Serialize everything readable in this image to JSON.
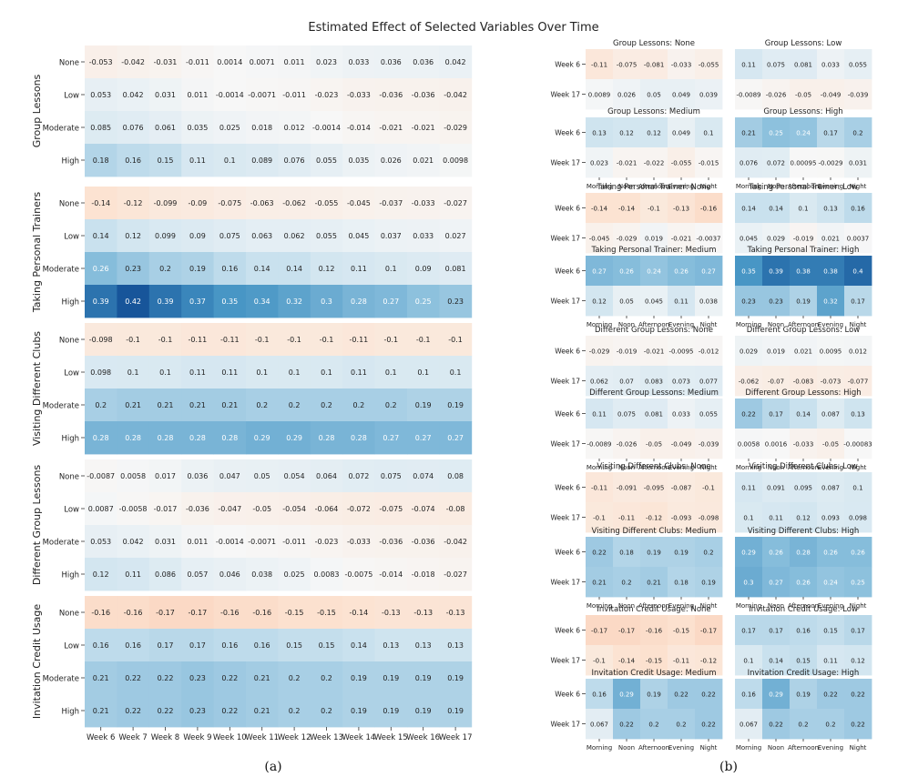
{
  "chart_data": [
    {
      "type": "heatmap",
      "id": "a",
      "title": "Estimated Effect of Selected Variables Over Time",
      "caption": "(a)",
      "columns": [
        "Week 6",
        "Week 7",
        "Week 8",
        "Week 9",
        "Week 10",
        "Week 11",
        "Week 12",
        "Week 13",
        "Week 14",
        "Week 15",
        "Week 16",
        "Week 17"
      ],
      "levels": [
        "None",
        "Low",
        "Moderate",
        "High"
      ],
      "color_range": [
        -0.42,
        0.42
      ],
      "groups": [
        {
          "name": "Group Lessons",
          "rows": [
            [
              "-0.053",
              "-0.042",
              "-0.031",
              "-0.011",
              "0.0014",
              "0.0071",
              "0.011",
              "0.023",
              "0.033",
              "0.036",
              "0.036",
              "0.042"
            ],
            [
              "0.053",
              "0.042",
              "0.031",
              "0.011",
              "-0.0014",
              "-0.0071",
              "-0.011",
              "-0.023",
              "-0.033",
              "-0.036",
              "-0.036",
              "-0.042"
            ],
            [
              "0.085",
              "0.076",
              "0.061",
              "0.035",
              "0.025",
              "0.018",
              "0.012",
              "-0.0014",
              "-0.014",
              "-0.021",
              "-0.021",
              "-0.029"
            ],
            [
              "0.18",
              "0.16",
              "0.15",
              "0.11",
              "0.1",
              "0.089",
              "0.076",
              "0.055",
              "0.035",
              "0.026",
              "0.021",
              "0.0098"
            ]
          ]
        },
        {
          "name": "Taking Personal Trainers",
          "rows": [
            [
              "-0.14",
              "-0.12",
              "-0.099",
              "-0.09",
              "-0.075",
              "-0.063",
              "-0.062",
              "-0.055",
              "-0.045",
              "-0.037",
              "-0.033",
              "-0.027"
            ],
            [
              "0.14",
              "0.12",
              "0.099",
              "0.09",
              "0.075",
              "0.063",
              "0.062",
              "0.055",
              "0.045",
              "0.037",
              "0.033",
              "0.027"
            ],
            [
              "0.26",
              "0.23",
              "0.2",
              "0.19",
              "0.16",
              "0.14",
              "0.14",
              "0.12",
              "0.11",
              "0.1",
              "0.09",
              "0.081"
            ],
            [
              "0.39",
              "0.42",
              "0.39",
              "0.37",
              "0.35",
              "0.34",
              "0.32",
              "0.3",
              "0.28",
              "0.27",
              "0.25",
              "0.23"
            ]
          ]
        },
        {
          "name": "Visiting Different Clubs",
          "rows": [
            [
              "-0.098",
              "-0.1",
              "-0.1",
              "-0.11",
              "-0.11",
              "-0.1",
              "-0.1",
              "-0.1",
              "-0.11",
              "-0.1",
              "-0.1",
              "-0.1"
            ],
            [
              "0.098",
              "0.1",
              "0.1",
              "0.11",
              "0.11",
              "0.1",
              "0.1",
              "0.1",
              "0.11",
              "0.1",
              "0.1",
              "0.1"
            ],
            [
              "0.2",
              "0.21",
              "0.21",
              "0.21",
              "0.21",
              "0.2",
              "0.2",
              "0.2",
              "0.2",
              "0.2",
              "0.19",
              "0.19"
            ],
            [
              "0.28",
              "0.28",
              "0.28",
              "0.28",
              "0.28",
              "0.29",
              "0.29",
              "0.28",
              "0.28",
              "0.27",
              "0.27",
              "0.27"
            ]
          ]
        },
        {
          "name": "Different Group Lessons",
          "rows": [
            [
              "-0.0087",
              "0.0058",
              "0.017",
              "0.036",
              "0.047",
              "0.05",
              "0.054",
              "0.064",
              "0.072",
              "0.075",
              "0.074",
              "0.08"
            ],
            [
              "0.0087",
              "-0.0058",
              "-0.017",
              "-0.036",
              "-0.047",
              "-0.05",
              "-0.054",
              "-0.064",
              "-0.072",
              "-0.075",
              "-0.074",
              "-0.08"
            ],
            [
              "0.053",
              "0.042",
              "0.031",
              "0.011",
              "-0.0014",
              "-0.0071",
              "-0.011",
              "-0.023",
              "-0.033",
              "-0.036",
              "-0.036",
              "-0.042"
            ],
            [
              "0.12",
              "0.11",
              "0.086",
              "0.057",
              "0.046",
              "0.038",
              "0.025",
              "0.0083",
              "-0.0075",
              "-0.014",
              "-0.018",
              "-0.027"
            ]
          ]
        },
        {
          "name": "Invitation Credit Usage",
          "rows": [
            [
              "-0.16",
              "-0.16",
              "-0.17",
              "-0.17",
              "-0.16",
              "-0.16",
              "-0.15",
              "-0.15",
              "-0.14",
              "-0.13",
              "-0.13",
              "-0.13"
            ],
            [
              "0.16",
              "0.16",
              "0.17",
              "0.17",
              "0.16",
              "0.16",
              "0.15",
              "0.15",
              "0.14",
              "0.13",
              "0.13",
              "0.13"
            ],
            [
              "0.21",
              "0.22",
              "0.22",
              "0.23",
              "0.22",
              "0.21",
              "0.2",
              "0.2",
              "0.19",
              "0.19",
              "0.19",
              "0.19"
            ],
            [
              "0.21",
              "0.22",
              "0.22",
              "0.23",
              "0.22",
              "0.21",
              "0.2",
              "0.2",
              "0.19",
              "0.19",
              "0.19",
              "0.19"
            ]
          ]
        }
      ]
    },
    {
      "type": "heatmap",
      "id": "b",
      "caption": "(b)",
      "columns": [
        "Morning",
        "Noon",
        "Afternoon",
        "Evening",
        "Night"
      ],
      "rows": [
        "Week 6",
        "Week 17"
      ],
      "color_range": [
        -0.42,
        0.42
      ],
      "panels": [
        {
          "title": "Group Lessons: None",
          "values": [
            [
              "-0.11",
              "-0.075",
              "-0.081",
              "-0.033",
              "-0.055"
            ],
            [
              "0.0089",
              "0.026",
              "0.05",
              "0.049",
              "0.039"
            ]
          ]
        },
        {
          "title": "Group Lessons: Low",
          "values": [
            [
              "0.11",
              "0.075",
              "0.081",
              "0.033",
              "0.055"
            ],
            [
              "-0.0089",
              "-0.026",
              "-0.05",
              "-0.049",
              "-0.039"
            ]
          ]
        },
        {
          "title": "Group Lessons: Medium",
          "values": [
            [
              "0.13",
              "0.12",
              "0.12",
              "0.049",
              "0.1"
            ],
            [
              "0.023",
              "-0.021",
              "-0.022",
              "-0.055",
              "-0.015"
            ]
          ]
        },
        {
          "title": "Group Lessons: High",
          "values": [
            [
              "0.21",
              "0.25",
              "0.24",
              "0.17",
              "0.2"
            ],
            [
              "0.076",
              "0.072",
              "0.00095",
              "-0.0029",
              "0.031"
            ]
          ]
        },
        {
          "title": "Taking Personal Trainer: None",
          "values": [
            [
              "-0.14",
              "-0.14",
              "-0.1",
              "-0.13",
              "-0.16"
            ],
            [
              "-0.045",
              "-0.029",
              "0.019",
              "-0.021",
              "-0.0037"
            ]
          ]
        },
        {
          "title": "Taking Personal Trainer: Low",
          "values": [
            [
              "0.14",
              "0.14",
              "0.1",
              "0.13",
              "0.16"
            ],
            [
              "0.045",
              "0.029",
              "-0.019",
              "0.021",
              "0.0037"
            ]
          ]
        },
        {
          "title": "Taking Personal Trainer: Medium",
          "values": [
            [
              "0.27",
              "0.26",
              "0.24",
              "0.26",
              "0.27"
            ],
            [
              "0.12",
              "0.05",
              "0.045",
              "0.11",
              "0.038"
            ]
          ]
        },
        {
          "title": "Taking Personal Trainer: High",
          "values": [
            [
              "0.35",
              "0.39",
              "0.38",
              "0.38",
              "0.4"
            ],
            [
              "0.23",
              "0.23",
              "0.19",
              "0.32",
              "0.17"
            ]
          ]
        },
        {
          "title": "Different Group Lessons: None",
          "values": [
            [
              "-0.029",
              "-0.019",
              "-0.021",
              "-0.0095",
              "-0.012"
            ],
            [
              "0.062",
              "0.07",
              "0.083",
              "0.073",
              "0.077"
            ]
          ]
        },
        {
          "title": "Different Group Lessons: Low",
          "values": [
            [
              "0.029",
              "0.019",
              "0.021",
              "0.0095",
              "0.012"
            ],
            [
              "-0.062",
              "-0.07",
              "-0.083",
              "-0.073",
              "-0.077"
            ]
          ]
        },
        {
          "title": "Different Group Lessons: Medium",
          "values": [
            [
              "0.11",
              "0.075",
              "0.081",
              "0.033",
              "0.055"
            ],
            [
              "-0.0089",
              "-0.026",
              "-0.05",
              "-0.049",
              "-0.039"
            ]
          ]
        },
        {
          "title": "Different Group Lessons: High",
          "values": [
            [
              "0.22",
              "0.17",
              "0.14",
              "0.087",
              "0.13"
            ],
            [
              "0.0058",
              "0.0016",
              "-0.033",
              "-0.05",
              "-0.00083"
            ]
          ]
        },
        {
          "title": "Visiting Different Clubs: None",
          "values": [
            [
              "-0.11",
              "-0.091",
              "-0.095",
              "-0.087",
              "-0.1"
            ],
            [
              "-0.1",
              "-0.11",
              "-0.12",
              "-0.093",
              "-0.098"
            ]
          ]
        },
        {
          "title": "Visiting Different Clubs: Low",
          "values": [
            [
              "0.11",
              "0.091",
              "0.095",
              "0.087",
              "0.1"
            ],
            [
              "0.1",
              "0.11",
              "0.12",
              "0.093",
              "0.098"
            ]
          ]
        },
        {
          "title": "Visiting Different Clubs: Medium",
          "values": [
            [
              "0.22",
              "0.18",
              "0.19",
              "0.19",
              "0.2"
            ],
            [
              "0.21",
              "0.2",
              "0.21",
              "0.18",
              "0.19"
            ]
          ]
        },
        {
          "title": "Visiting Different Clubs: High",
          "values": [
            [
              "0.29",
              "0.26",
              "0.28",
              "0.26",
              "0.26"
            ],
            [
              "0.3",
              "0.27",
              "0.26",
              "0.24",
              "0.25"
            ]
          ]
        },
        {
          "title": "Invitation Credit Usage: None",
          "values": [
            [
              "-0.17",
              "-0.17",
              "-0.16",
              "-0.15",
              "-0.17"
            ],
            [
              "-0.1",
              "-0.14",
              "-0.15",
              "-0.11",
              "-0.12"
            ]
          ]
        },
        {
          "title": "Invitation Credit Usage: Low",
          "values": [
            [
              "0.17",
              "0.17",
              "0.16",
              "0.15",
              "0.17"
            ],
            [
              "0.1",
              "0.14",
              "0.15",
              "0.11",
              "0.12"
            ]
          ]
        },
        {
          "title": "Invitation Credit Usage: Medium",
          "values": [
            [
              "0.16",
              "0.29",
              "0.19",
              "0.22",
              "0.22"
            ],
            [
              "0.067",
              "0.22",
              "0.2",
              "0.2",
              "0.22"
            ]
          ]
        },
        {
          "title": "Invitation Credit Usage: High",
          "values": [
            [
              "0.16",
              "0.29",
              "0.19",
              "0.22",
              "0.22"
            ],
            [
              "0.067",
              "0.22",
              "0.2",
              "0.2",
              "0.22"
            ]
          ]
        }
      ]
    }
  ]
}
